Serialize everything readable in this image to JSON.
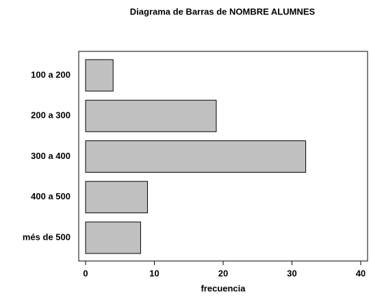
{
  "chart_data": {
    "type": "bar",
    "orientation": "horizontal",
    "title": "Diagrama de Barras de NOMBRE ALUMNES",
    "x_label": "frecuencia",
    "categories": [
      "100 a 200",
      "200 a 300",
      "300 a 400",
      "400 a 500",
      "més de 500"
    ],
    "values": [
      4,
      19,
      32,
      9,
      8
    ],
    "color": "#c0c0c0",
    "xlim": [
      -1,
      41
    ],
    "xticks": [
      0,
      10,
      20,
      30,
      40
    ],
    "grid": false
  }
}
